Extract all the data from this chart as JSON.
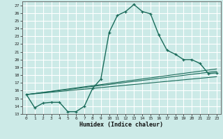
{
  "xlabel": "Humidex (Indice chaleur)",
  "ylabel": "",
  "bg_color": "#cceae7",
  "grid_color": "#ffffff",
  "line_color": "#1a6b5a",
  "xlim": [
    -0.5,
    23.5
  ],
  "ylim": [
    13,
    27.5
  ],
  "yticks": [
    13,
    14,
    15,
    16,
    17,
    18,
    19,
    20,
    21,
    22,
    23,
    24,
    25,
    26,
    27
  ],
  "xticks": [
    0,
    1,
    2,
    3,
    4,
    5,
    6,
    7,
    8,
    9,
    10,
    11,
    12,
    13,
    14,
    15,
    16,
    17,
    18,
    19,
    20,
    21,
    22,
    23
  ],
  "line1_x": [
    0,
    1,
    2,
    3,
    4,
    5,
    6,
    7,
    8,
    9,
    10,
    11,
    12,
    13,
    14,
    15,
    16,
    17,
    18,
    19,
    20,
    21,
    22,
    23
  ],
  "line1_y": [
    15.5,
    13.8,
    14.4,
    14.5,
    14.5,
    13.3,
    13.3,
    14.0,
    16.3,
    17.5,
    23.5,
    25.7,
    26.2,
    27.1,
    26.2,
    25.9,
    23.2,
    21.2,
    20.7,
    20.0,
    20.0,
    19.5,
    18.2,
    18.3
  ],
  "line2_x": [
    0,
    23
  ],
  "line2_y": [
    15.5,
    18.5
  ],
  "line3_x": [
    0,
    23
  ],
  "line3_y": [
    15.5,
    18.8
  ],
  "line4_x": [
    0,
    23
  ],
  "line4_y": [
    15.5,
    17.8
  ]
}
